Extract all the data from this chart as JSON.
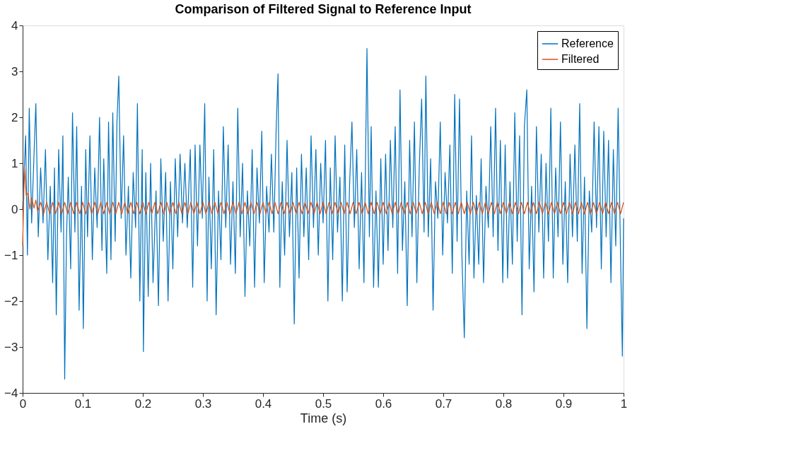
{
  "chart_data": {
    "type": "line",
    "title": "Comparison of Filtered Signal to Reference Input",
    "xlabel": "Time (s)",
    "xlim": [
      0,
      1
    ],
    "ylim": [
      -4,
      4
    ],
    "xticks": [
      0,
      0.1,
      0.2,
      0.3,
      0.4,
      0.5,
      0.6,
      0.7,
      0.8,
      0.9,
      1
    ],
    "yticks": [
      -4,
      -3,
      -2,
      -1,
      0,
      1,
      2,
      3,
      4
    ],
    "grid": false,
    "legend": "top right",
    "marker": "none",
    "line_style": "solid",
    "series": [
      {
        "name": "Reference",
        "color": "#0072bd",
        "x": [
          0,
          0.005,
          0.008,
          0.011,
          0.015,
          0.019,
          0.022,
          0.026,
          0.03,
          0.034,
          0.038,
          0.042,
          0.046,
          0.05,
          0.053,
          0.056,
          0.06,
          0.064,
          0.067,
          0.07,
          0.073,
          0.076,
          0.08,
          0.083,
          0.087,
          0.09,
          0.094,
          0.098,
          0.101,
          0.105,
          0.108,
          0.112,
          0.116,
          0.12,
          0.124,
          0.128,
          0.132,
          0.135,
          0.14,
          0.143,
          0.147,
          0.15,
          0.154,
          0.157,
          0.16,
          0.164,
          0.168,
          0.172,
          0.176,
          0.18,
          0.184,
          0.188,
          0.191,
          0.195,
          0.199,
          0.201,
          0.205,
          0.209,
          0.213,
          0.217,
          0.222,
          0.226,
          0.23,
          0.234,
          0.238,
          0.242,
          0.246,
          0.25,
          0.254,
          0.258,
          0.262,
          0.266,
          0.27,
          0.274,
          0.279,
          0.283,
          0.287,
          0.291,
          0.295,
          0.299,
          0.303,
          0.307,
          0.31,
          0.314,
          0.318,
          0.322,
          0.326,
          0.33,
          0.334,
          0.338,
          0.342,
          0.346,
          0.35,
          0.354,
          0.358,
          0.362,
          0.366,
          0.37,
          0.374,
          0.378,
          0.382,
          0.386,
          0.39,
          0.394,
          0.398,
          0.402,
          0.406,
          0.41,
          0.414,
          0.418,
          0.422,
          0.425,
          0.428,
          0.432,
          0.436,
          0.44,
          0.444,
          0.448,
          0.452,
          0.456,
          0.46,
          0.464,
          0.468,
          0.472,
          0.476,
          0.48,
          0.484,
          0.488,
          0.492,
          0.496,
          0.5,
          0.504,
          0.508,
          0.512,
          0.516,
          0.52,
          0.524,
          0.528,
          0.532,
          0.536,
          0.54,
          0.544,
          0.548,
          0.552,
          0.556,
          0.56,
          0.564,
          0.568,
          0.573,
          0.577,
          0.58,
          0.584,
          0.588,
          0.592,
          0.596,
          0.6,
          0.604,
          0.608,
          0.612,
          0.616,
          0.62,
          0.624,
          0.628,
          0.632,
          0.636,
          0.64,
          0.644,
          0.648,
          0.652,
          0.656,
          0.66,
          0.664,
          0.668,
          0.671,
          0.675,
          0.679,
          0.683,
          0.687,
          0.691,
          0.695,
          0.699,
          0.703,
          0.707,
          0.711,
          0.715,
          0.719,
          0.723,
          0.727,
          0.731,
          0.735,
          0.739,
          0.743,
          0.747,
          0.751,
          0.755,
          0.759,
          0.763,
          0.767,
          0.771,
          0.775,
          0.779,
          0.783,
          0.787,
          0.791,
          0.795,
          0.799,
          0.803,
          0.807,
          0.811,
          0.815,
          0.819,
          0.823,
          0.827,
          0.831,
          0.835,
          0.839,
          0.843,
          0.847,
          0.851,
          0.855,
          0.859,
          0.863,
          0.867,
          0.871,
          0.875,
          0.879,
          0.883,
          0.887,
          0.891,
          0.895,
          0.899,
          0.903,
          0.907,
          0.911,
          0.915,
          0.919,
          0.923,
          0.927,
          0.931,
          0.935,
          0.939,
          0.943,
          0.947,
          0.951,
          0.955,
          0.959,
          0.963,
          0.967,
          0.971,
          0.975,
          0.979,
          0.983,
          0.987,
          0.991,
          0.995,
          0.998,
          1.0
        ],
        "values": [
          0.0,
          1.6,
          -1.0,
          2.2,
          -0.3,
          1.2,
          2.3,
          -0.6,
          0.9,
          -0.3,
          1.3,
          -1.1,
          0.5,
          -1.6,
          0.9,
          -2.3,
          1.3,
          -0.5,
          1.6,
          -3.7,
          -0.6,
          0.7,
          -1.3,
          2.1,
          -0.5,
          1.8,
          -2.2,
          0.5,
          -2.6,
          1.3,
          -0.6,
          1.6,
          -1.1,
          0.9,
          -0.4,
          2.0,
          -0.9,
          1.1,
          -1.4,
          1.9,
          -1.1,
          2.1,
          -0.7,
          1.9,
          2.9,
          -0.2,
          1.6,
          -1.0,
          0.5,
          -1.5,
          0.8,
          -0.4,
          2.3,
          -2.0,
          1.3,
          -3.1,
          0.8,
          -1.9,
          1.0,
          -1.6,
          0.4,
          -2.1,
          1.1,
          -0.7,
          0.8,
          -2.0,
          0.6,
          -1.3,
          1.1,
          -0.6,
          1.2,
          -0.3,
          1.0,
          -0.4,
          1.3,
          -1.7,
          1.4,
          -0.8,
          1.4,
          -0.2,
          2.3,
          -2.0,
          0.7,
          -1.3,
          1.3,
          -2.3,
          0.4,
          -1.1,
          1.8,
          -0.4,
          1.4,
          -1.2,
          0.6,
          -1.4,
          2.2,
          -0.6,
          1.0,
          -1.9,
          0.4,
          -0.8,
          1.3,
          -1.7,
          0.9,
          -0.3,
          1.7,
          -1.6,
          0.5,
          -0.5,
          1.2,
          -0.5,
          1.8,
          2.95,
          -1.7,
          0.6,
          -1.0,
          1.5,
          -0.6,
          0.8,
          -2.5,
          0.9,
          -1.5,
          1.2,
          -0.6,
          0.9,
          -1.1,
          1.6,
          -0.4,
          1.3,
          -1.0,
          1.0,
          -0.3,
          1.5,
          -2.0,
          0.9,
          -1.1,
          1.6,
          -0.5,
          0.7,
          -2.0,
          1.4,
          -1.8,
          0.5,
          1.9,
          -0.4,
          1.3,
          -1.3,
          0.8,
          -1.6,
          3.5,
          -0.6,
          1.8,
          -1.7,
          0.4,
          -1.7,
          1.1,
          -1.2,
          1.2,
          -0.9,
          1.5,
          -0.4,
          1.8,
          -1.4,
          2.6,
          -0.9,
          0.6,
          -2.1,
          1.5,
          -0.6,
          1.9,
          -1.6,
          0.9,
          2.4,
          -0.5,
          2.9,
          -0.6,
          1.1,
          -2.2,
          0.6,
          -0.2,
          1.9,
          -1.0,
          0.8,
          -0.3,
          1.4,
          -1.4,
          2.5,
          -0.7,
          2.4,
          -1.0,
          -2.8,
          0.4,
          -1.2,
          1.6,
          -1.5,
          0.3,
          -1.2,
          1.1,
          -1.6,
          0.5,
          -0.4,
          1.8,
          -0.6,
          2.2,
          -0.9,
          1.5,
          -1.6,
          1.4,
          -1.5,
          0.6,
          -1.2,
          2.1,
          -0.7,
          1.6,
          -2.3,
          1.8,
          2.6,
          -1.3,
          0.5,
          -1.8,
          1.8,
          -0.5,
          1.2,
          -1.5,
          1.0,
          -0.7,
          2.2,
          -1.5,
          0.9,
          -0.6,
          1.9,
          -1.2,
          0.6,
          -1.6,
          1.2,
          -0.6,
          1.4,
          -0.7,
          2.3,
          -1.4,
          0.7,
          -2.6,
          0.4,
          -0.5,
          1.9,
          -0.4,
          1.8,
          -1.3,
          1.7,
          -0.6,
          1.5,
          -1.6,
          1.3,
          -0.8,
          2.2,
          -1.0,
          -3.2,
          -0.2
        ]
      },
      {
        "name": "Filtered",
        "color": "#d95319",
        "x": [
          0,
          0.003,
          0.006,
          0.009,
          0.012,
          0.015,
          0.019,
          0.022,
          0.025,
          0.03,
          0.035,
          0.04,
          0.045,
          0.05,
          0.055,
          0.06,
          0.065,
          0.07,
          0.075,
          0.08,
          0.085,
          0.09,
          0.095,
          0.1,
          0.105,
          0.11,
          0.115,
          0.12,
          0.125,
          0.13,
          0.135,
          0.14,
          0.145,
          0.15,
          0.155,
          0.16,
          0.165,
          0.17,
          0.175,
          0.18,
          0.185,
          0.19,
          0.195,
          0.2,
          0.205,
          0.21,
          0.215,
          0.22,
          0.225,
          0.23,
          0.235,
          0.24,
          0.245,
          0.25,
          0.255,
          0.26,
          0.265,
          0.27,
          0.275,
          0.28,
          0.285,
          0.29,
          0.295,
          0.3,
          0.305,
          0.31,
          0.315,
          0.32,
          0.325,
          0.33,
          0.335,
          0.34,
          0.345,
          0.35,
          0.355,
          0.36,
          0.365,
          0.37,
          0.375,
          0.38,
          0.385,
          0.39,
          0.395,
          0.4,
          0.405,
          0.41,
          0.415,
          0.42,
          0.425,
          0.43,
          0.435,
          0.44,
          0.445,
          0.45,
          0.455,
          0.46,
          0.465,
          0.47,
          0.475,
          0.48,
          0.485,
          0.49,
          0.495,
          0.5,
          0.505,
          0.51,
          0.515,
          0.52,
          0.525,
          0.53,
          0.535,
          0.54,
          0.545,
          0.55,
          0.555,
          0.56,
          0.565,
          0.57,
          0.575,
          0.58,
          0.585,
          0.59,
          0.595,
          0.6,
          0.605,
          0.61,
          0.615,
          0.62,
          0.625,
          0.63,
          0.635,
          0.64,
          0.645,
          0.65,
          0.655,
          0.66,
          0.665,
          0.67,
          0.675,
          0.68,
          0.685,
          0.69,
          0.695,
          0.7,
          0.705,
          0.71,
          0.715,
          0.72,
          0.725,
          0.73,
          0.735,
          0.74,
          0.745,
          0.75,
          0.755,
          0.76,
          0.765,
          0.77,
          0.775,
          0.78,
          0.785,
          0.79,
          0.795,
          0.8,
          0.805,
          0.81,
          0.815,
          0.82,
          0.825,
          0.83,
          0.835,
          0.84,
          0.845,
          0.85,
          0.855,
          0.86,
          0.865,
          0.87,
          0.875,
          0.88,
          0.885,
          0.89,
          0.895,
          0.9,
          0.905,
          0.91,
          0.915,
          0.92,
          0.925,
          0.93,
          0.935,
          0.94,
          0.945,
          0.95,
          0.955,
          0.96,
          0.965,
          0.97,
          0.975,
          0.98,
          0.985,
          0.99,
          0.995,
          1.0
        ],
        "values": [
          -0.8,
          0.9,
          0.3,
          0.35,
          0.0,
          0.25,
          0.02,
          0.2,
          -0.05,
          0.15,
          -0.1,
          0.15,
          -0.1,
          0.15,
          -0.1,
          0.15,
          -0.1,
          0.15,
          -0.1,
          0.15,
          -0.1,
          0.15,
          -0.1,
          0.15,
          -0.1,
          0.15,
          -0.1,
          0.15,
          -0.1,
          0.15,
          -0.1,
          0.15,
          -0.1,
          0.15,
          -0.1,
          0.15,
          -0.1,
          0.15,
          -0.1,
          0.15,
          -0.1,
          0.15,
          -0.1,
          0.15,
          -0.1,
          0.15,
          -0.1,
          0.15,
          -0.1,
          0.15,
          -0.1,
          0.15,
          -0.1,
          0.15,
          -0.1,
          0.15,
          -0.1,
          0.15,
          -0.1,
          0.15,
          -0.1,
          0.15,
          -0.1,
          0.15,
          -0.1,
          0.15,
          -0.1,
          0.15,
          -0.1,
          0.15,
          -0.1,
          0.15,
          -0.1,
          0.15,
          -0.1,
          0.15,
          -0.1,
          0.15,
          -0.1,
          0.15,
          -0.1,
          0.15,
          -0.1,
          0.15,
          -0.1,
          0.15,
          -0.1,
          0.15,
          -0.1,
          0.15,
          -0.1,
          0.15,
          -0.1,
          0.15,
          -0.1,
          0.15,
          -0.1,
          0.15,
          -0.1,
          0.15,
          -0.1,
          0.15,
          -0.1,
          0.15,
          -0.1,
          0.15,
          -0.1,
          0.15,
          -0.1,
          0.15,
          -0.1,
          0.15,
          -0.1,
          0.15,
          -0.1,
          0.15,
          -0.1,
          0.15,
          -0.1,
          0.15,
          -0.1,
          0.15,
          -0.1,
          0.15,
          -0.1,
          0.15,
          -0.1,
          0.15,
          -0.1,
          0.15,
          -0.1,
          0.15,
          -0.1,
          0.15,
          -0.1,
          0.15,
          -0.1,
          0.15,
          -0.1,
          0.15,
          -0.1,
          0.15,
          -0.1,
          0.15,
          -0.1,
          0.15,
          -0.1,
          0.15,
          -0.1,
          0.15,
          -0.1,
          0.15,
          -0.1,
          0.15,
          -0.1,
          0.15,
          -0.1,
          0.15,
          -0.1,
          0.15,
          -0.1,
          0.15,
          -0.1,
          0.15,
          -0.1,
          0.15,
          -0.1,
          0.15,
          -0.1,
          0.15,
          -0.1,
          0.15,
          -0.1,
          0.15,
          -0.1,
          0.15,
          -0.1,
          0.15,
          -0.1,
          0.15,
          -0.1,
          0.15,
          -0.1,
          0.15,
          -0.1,
          0.15,
          -0.1,
          0.15,
          -0.1,
          0.15,
          -0.1,
          0.15,
          -0.1,
          0.15,
          -0.1,
          0.15,
          -0.1,
          0.15,
          -0.1,
          0.15,
          -0.1,
          0.15,
          -0.1,
          0.15
        ]
      }
    ]
  }
}
